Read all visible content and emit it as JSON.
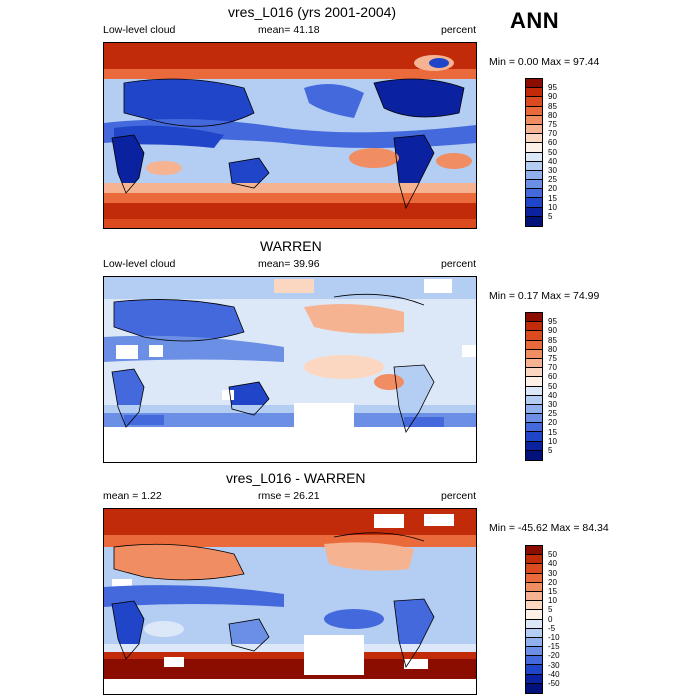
{
  "season": "ANN",
  "panels": [
    {
      "title": "vres_L016 (yrs 2001-2004)",
      "left_label": "Low-level cloud",
      "center_label": "mean=  41.18",
      "right_label": "percent",
      "minmax": "Min =   0.00 Max =  97.44",
      "colorbar_labels": [
        "95",
        "90",
        "85",
        "80",
        "75",
        "70",
        "60",
        "50",
        "40",
        "30",
        "25",
        "20",
        "15",
        "10",
        "5"
      ],
      "colorbar_colors": [
        "#8b0d00",
        "#c12b0a",
        "#dc4a1f",
        "#ea6a3c",
        "#f08d63",
        "#f6b391",
        "#fbd7c2",
        "#fdf0e6",
        "#dce8f8",
        "#b4cdf2",
        "#8fb0ec",
        "#6a8fe4",
        "#4469dc",
        "#2145c8",
        "#0a22a0",
        "#02127a"
      ]
    },
    {
      "title": "WARREN",
      "left_label": "Low-level cloud",
      "center_label": "mean=  39.96",
      "right_label": "percent",
      "minmax": "Min =   0.17 Max =  74.99",
      "colorbar_labels": [
        "95",
        "90",
        "85",
        "80",
        "75",
        "70",
        "60",
        "50",
        "40",
        "30",
        "25",
        "20",
        "15",
        "10",
        "5"
      ],
      "colorbar_colors": [
        "#8b0d00",
        "#c12b0a",
        "#dc4a1f",
        "#ea6a3c",
        "#f08d63",
        "#f6b391",
        "#fbd7c2",
        "#fdf0e6",
        "#dce8f8",
        "#b4cdf2",
        "#8fb0ec",
        "#6a8fe4",
        "#4469dc",
        "#2145c8",
        "#0a22a0",
        "#02127a"
      ]
    },
    {
      "title": "vres_L016 - WARREN",
      "left_label": "mean =   1.22",
      "center_label": "rmse =  26.21",
      "right_label": "percent",
      "minmax": "Min = -45.62 Max =  84.34",
      "colorbar_labels": [
        "50",
        "40",
        "30",
        "20",
        "15",
        "10",
        "5",
        "0",
        "-5",
        "-10",
        "-15",
        "-20",
        "-30",
        "-40",
        "-50"
      ],
      "colorbar_colors": [
        "#8b0d00",
        "#c12b0a",
        "#dc4a1f",
        "#ea6a3c",
        "#f08d63",
        "#f6b391",
        "#fbd7c2",
        "#fdf0e6",
        "#dce8f8",
        "#b4cdf2",
        "#8fb0ec",
        "#6a8fe4",
        "#4469dc",
        "#2145c8",
        "#0a22a0",
        "#02127a"
      ]
    }
  ]
}
